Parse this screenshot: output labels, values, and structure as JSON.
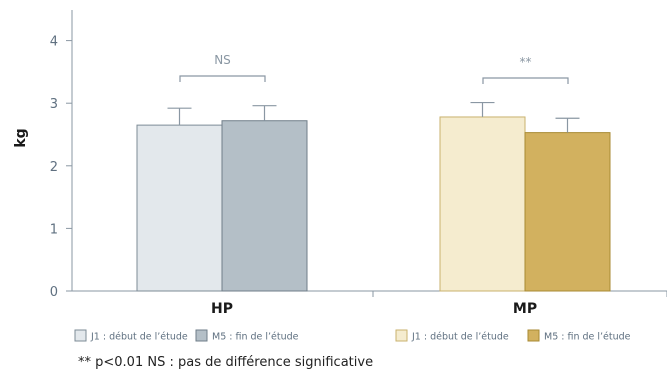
{
  "chart_data": {
    "type": "bar",
    "ylabel": "kg",
    "ylim": [
      0,
      4
    ],
    "yticks": [
      0,
      1,
      2,
      3,
      4
    ],
    "grid": false,
    "categories": [
      "HP",
      "MP"
    ],
    "series": [
      {
        "name": "J1 : début de l’étude",
        "group": "HP",
        "value": 2.65,
        "error": 0.27,
        "color": "#e3e8ec"
      },
      {
        "name": "M5 : fin de l’étude",
        "group": "HP",
        "value": 2.72,
        "error": 0.24,
        "color": "#b4bfc7"
      },
      {
        "name": "J1 : début de l’étude",
        "group": "MP",
        "value": 2.78,
        "error": 0.23,
        "color": "#f5eccf"
      },
      {
        "name": "M5 : fin de l’étude",
        "group": "MP",
        "value": 2.53,
        "error": 0.23,
        "color": "#d2b15f"
      }
    ],
    "significance": [
      {
        "group": "HP",
        "label": "NS"
      },
      {
        "group": "MP",
        "label": "**"
      }
    ],
    "legend_position": "bottom"
  },
  "footnote": "** p<0.01 NS : pas de différence significative"
}
